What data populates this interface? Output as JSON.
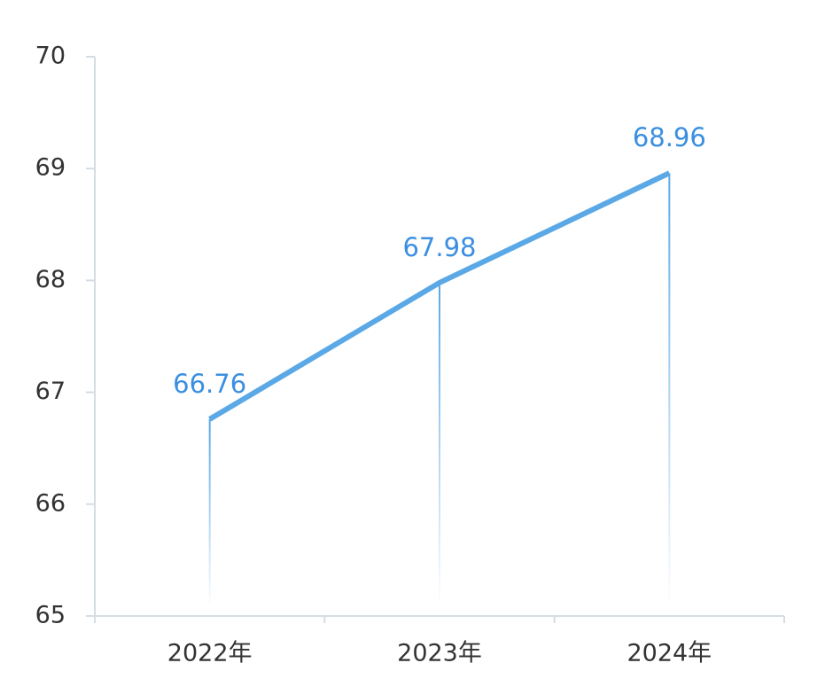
{
  "chart_data": {
    "type": "line",
    "categories": [
      "2022年",
      "2023年",
      "2024年"
    ],
    "series": [
      {
        "values": [
          66.76,
          67.98,
          68.96
        ]
      }
    ],
    "data_labels": [
      "66.76",
      "67.98",
      "68.96"
    ],
    "yticks": [
      "65",
      "66",
      "67",
      "68",
      "69",
      "70"
    ],
    "ylim": [
      65,
      70
    ],
    "title": "",
    "xlabel": "",
    "ylabel": "",
    "grid": false,
    "legend": "none",
    "drop_lines": true,
    "colors": {
      "line": "#5aa8e6",
      "label": "#3b8fe0",
      "axis": "#d4dde2",
      "tick_text": "#333333"
    }
  }
}
